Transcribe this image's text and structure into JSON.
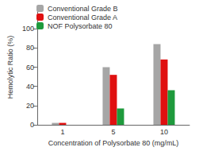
{
  "chart_data": {
    "type": "bar",
    "x_label": "Concentration of Polysorbate 80 (mg/mL)",
    "y_label": "Hemolytic Ratio (%)",
    "categories": [
      "1",
      "5",
      "10"
    ],
    "series": [
      {
        "name": "Conventional Grade B",
        "color": "#a6a6a6",
        "values": [
          2,
          60,
          84
        ]
      },
      {
        "name": "Conventional Grade A",
        "color": "#e01010",
        "values": [
          2,
          52,
          68
        ]
      },
      {
        "name": "NOF Polysorbate 80",
        "color": "#1e9a3c",
        "values": [
          0,
          17,
          36
        ]
      }
    ],
    "ylim": [
      0,
      120
    ],
    "yticks": [
      0,
      20,
      40,
      60,
      80,
      100
    ],
    "grid": false,
    "legend": "top-left"
  }
}
